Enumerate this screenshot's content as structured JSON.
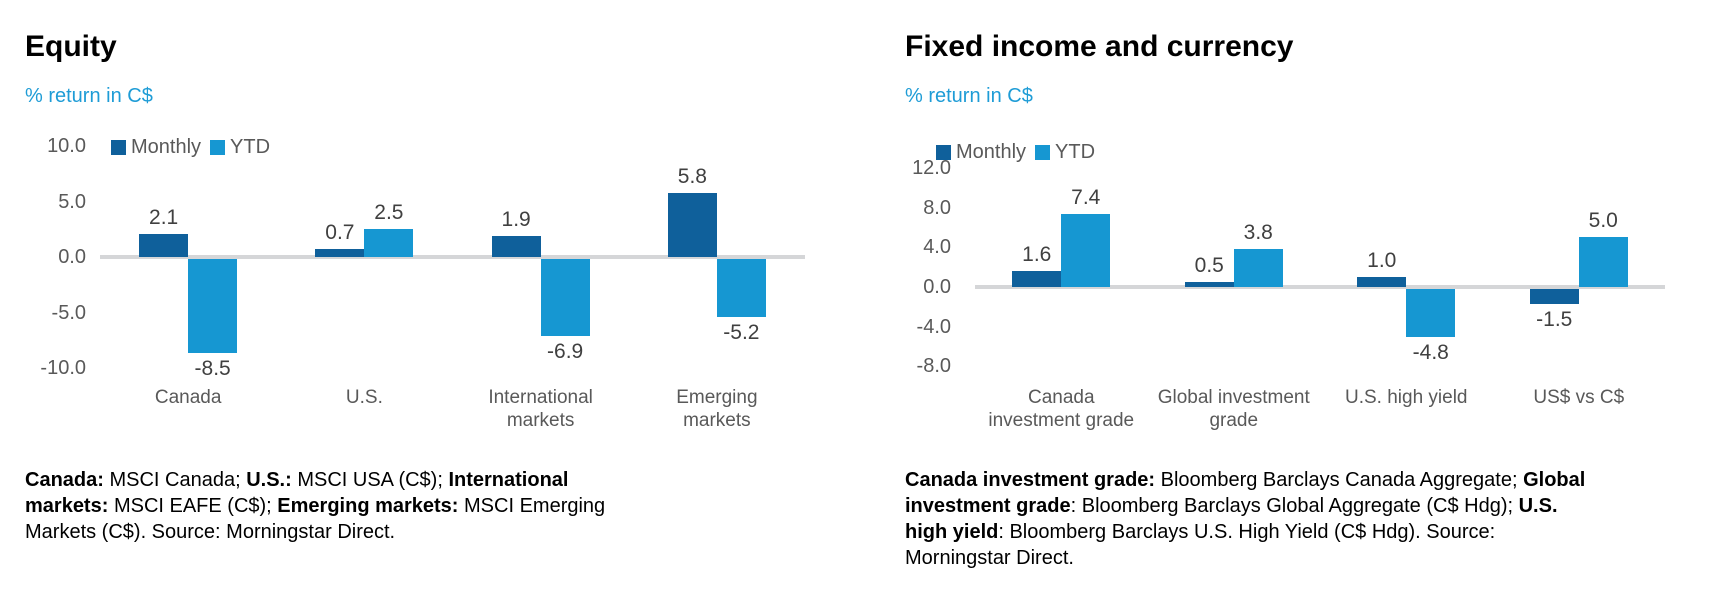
{
  "page": {
    "background": "#ffffff"
  },
  "colors": {
    "monthly": "#0F609B",
    "ytd": "#1697D2",
    "subtitle_text": "#1E9CD6",
    "axis_text": "#595959",
    "data_label_text": "#404040",
    "baseline": "#D5D6D8",
    "title_text": "#000000",
    "footnote_text": "#000000"
  },
  "chart_data": [
    {
      "type": "bar",
      "title": "Equity",
      "subtitle": "% return in C$",
      "ylabel": "% return in C$",
      "categories": [
        "Canada",
        "U.S.",
        "International\nmarkets",
        "Emerging\nmarkets"
      ],
      "series": [
        {
          "name": "Monthly",
          "color_key": "monthly",
          "values": [
            2.1,
            0.7,
            1.9,
            5.8
          ]
        },
        {
          "name": "YTD",
          "color_key": "ytd",
          "values": [
            -8.5,
            2.5,
            -6.9,
            -5.2
          ]
        }
      ],
      "data_labels": [
        [
          "2.1",
          "0.7",
          "1.9",
          "5.8"
        ],
        [
          "-8.5",
          "2.5",
          "-6.9",
          "-5.2"
        ]
      ],
      "yticks": [
        10.0,
        5.0,
        0.0,
        -5.0,
        -10.0
      ],
      "ytick_labels": [
        "10.0",
        "5.0",
        "0.0",
        "-5.0",
        "-10.0"
      ],
      "ylim": [
        -10,
        10
      ],
      "grid": false,
      "legend_position": "top-left-inside",
      "footnote_segments": [
        {
          "text": "Canada:",
          "bold": true
        },
        {
          "text": " MSCI Canada; ",
          "bold": false
        },
        {
          "text": "U.S.:",
          "bold": true
        },
        {
          "text": " MSCI USA (C$); ",
          "bold": false
        },
        {
          "text": "International markets:",
          "bold": true
        },
        {
          "text": " MSCI EAFE (C$); ",
          "bold": false
        },
        {
          "text": "Emerging markets:",
          "bold": true
        },
        {
          "text": " MSCI Emerging Markets (C$). Source: Morningstar Direct.",
          "bold": false
        }
      ]
    },
    {
      "type": "bar",
      "title": "Fixed income and currency",
      "subtitle": "% return in C$",
      "ylabel": "% return in C$",
      "categories": [
        "Canada\ninvestment grade",
        "Global investment\ngrade",
        "U.S. high yield",
        "US$ vs C$"
      ],
      "series": [
        {
          "name": "Monthly",
          "color_key": "monthly",
          "values": [
            1.6,
            0.5,
            1.0,
            -1.5
          ]
        },
        {
          "name": "YTD",
          "color_key": "ytd",
          "values": [
            7.4,
            3.8,
            -4.8,
            5.0
          ]
        }
      ],
      "data_labels": [
        [
          "1.6",
          "0.5",
          "1.0",
          "-1.5"
        ],
        [
          "7.4",
          "3.8",
          "-4.8",
          "5.0"
        ]
      ],
      "yticks": [
        12.0,
        8.0,
        4.0,
        0.0,
        -4.0,
        -8.0
      ],
      "ytick_labels": [
        "12.0",
        "8.0",
        "4.0",
        "0.0",
        "-4.0",
        "-8.0"
      ],
      "ylim": [
        -8,
        12
      ],
      "grid": false,
      "legend_position": "top-left-inside",
      "footnote_segments": [
        {
          "text": "Canada investment grade:",
          "bold": true
        },
        {
          "text": " Bloomberg Barclays Canada Aggregate; ",
          "bold": false
        },
        {
          "text": "Global investment grade",
          "bold": true
        },
        {
          "text": ": Bloomberg Barclays Global Aggregate (C$ Hdg); ",
          "bold": false
        },
        {
          "text": "U.S. high yield",
          "bold": true
        },
        {
          "text": ": Bloomberg Barclays U.S. High Yield (C$ Hdg). Source: Morningstar Direct.",
          "bold": false
        }
      ]
    }
  ]
}
